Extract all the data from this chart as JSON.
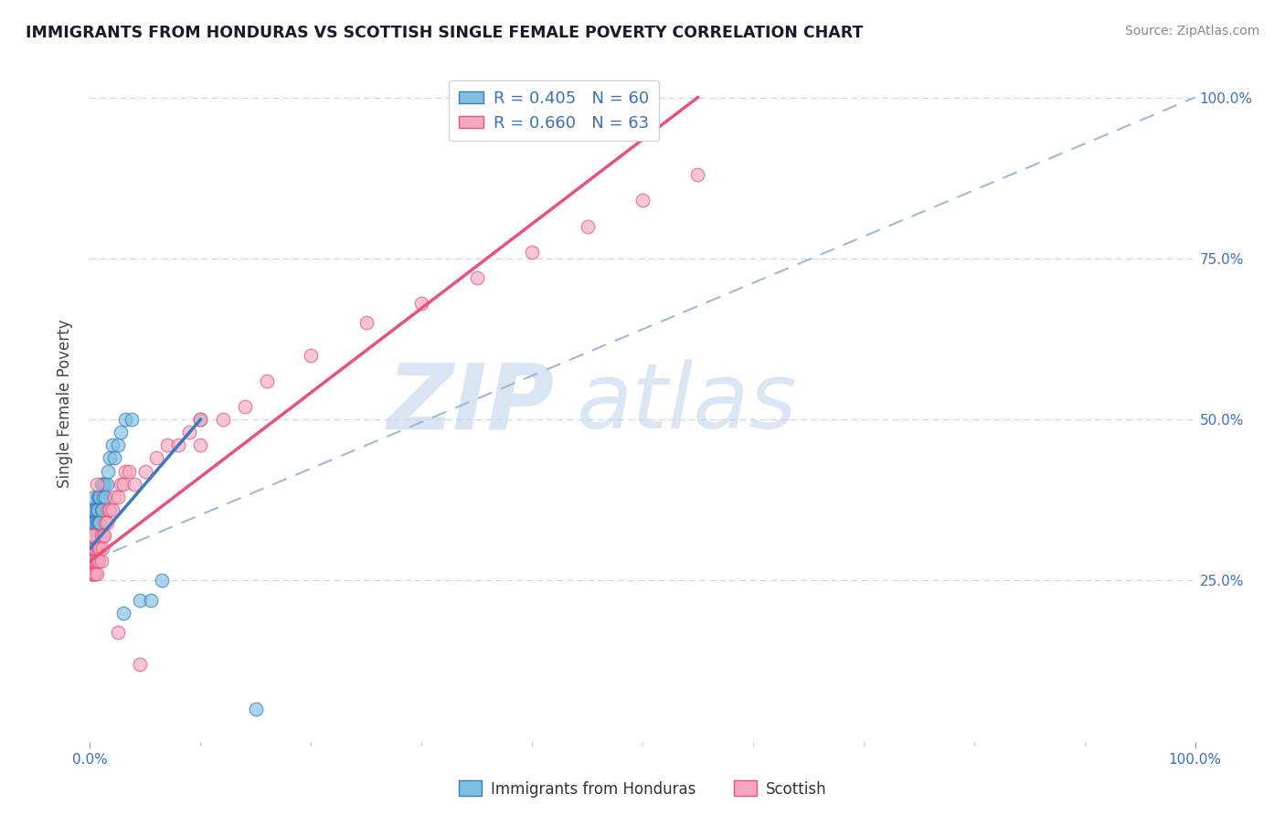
{
  "title": "IMMIGRANTS FROM HONDURAS VS SCOTTISH SINGLE FEMALE POVERTY CORRELATION CHART",
  "source": "Source: ZipAtlas.com",
  "ylabel": "Single Female Poverty",
  "legend_entry1_label": "R = 0.405   N = 60",
  "legend_entry2_label": "R = 0.660   N = 63",
  "legend_label1": "Immigrants from Honduras",
  "legend_label2": "Scottish",
  "color_blue": "#7fbfdf",
  "color_pink": "#f4a8bf",
  "color_blue_line": "#3a7bbf",
  "color_pink_line": "#e8527a",
  "color_dashed": "#a0b8d8",
  "blue_x": [
    0.001,
    0.001,
    0.001,
    0.002,
    0.002,
    0.002,
    0.002,
    0.002,
    0.003,
    0.003,
    0.003,
    0.003,
    0.003,
    0.003,
    0.004,
    0.004,
    0.004,
    0.004,
    0.004,
    0.004,
    0.005,
    0.005,
    0.005,
    0.005,
    0.005,
    0.006,
    0.006,
    0.006,
    0.006,
    0.007,
    0.007,
    0.007,
    0.007,
    0.008,
    0.008,
    0.008,
    0.009,
    0.009,
    0.01,
    0.01,
    0.011,
    0.011,
    0.012,
    0.013,
    0.014,
    0.015,
    0.016,
    0.018,
    0.02,
    0.022,
    0.025,
    0.028,
    0.032,
    0.038,
    0.045,
    0.055,
    0.065,
    0.1,
    0.15,
    0.03
  ],
  "blue_y": [
    0.28,
    0.3,
    0.32,
    0.28,
    0.3,
    0.32,
    0.34,
    0.36,
    0.26,
    0.28,
    0.3,
    0.32,
    0.34,
    0.36,
    0.28,
    0.3,
    0.32,
    0.34,
    0.36,
    0.38,
    0.28,
    0.3,
    0.32,
    0.34,
    0.36,
    0.3,
    0.32,
    0.34,
    0.36,
    0.32,
    0.34,
    0.36,
    0.38,
    0.32,
    0.34,
    0.38,
    0.34,
    0.38,
    0.36,
    0.4,
    0.36,
    0.4,
    0.38,
    0.4,
    0.38,
    0.4,
    0.42,
    0.44,
    0.46,
    0.44,
    0.46,
    0.48,
    0.5,
    0.5,
    0.22,
    0.22,
    0.25,
    0.5,
    0.05,
    0.2
  ],
  "pink_x": [
    0.001,
    0.001,
    0.001,
    0.001,
    0.002,
    0.002,
    0.002,
    0.002,
    0.003,
    0.003,
    0.003,
    0.003,
    0.004,
    0.004,
    0.004,
    0.005,
    0.005,
    0.005,
    0.006,
    0.006,
    0.006,
    0.007,
    0.007,
    0.008,
    0.008,
    0.009,
    0.01,
    0.01,
    0.011,
    0.012,
    0.013,
    0.014,
    0.015,
    0.016,
    0.018,
    0.02,
    0.022,
    0.025,
    0.028,
    0.03,
    0.032,
    0.035,
    0.04,
    0.05,
    0.06,
    0.07,
    0.08,
    0.09,
    0.1,
    0.1,
    0.12,
    0.14,
    0.16,
    0.2,
    0.25,
    0.3,
    0.35,
    0.4,
    0.45,
    0.5,
    0.55,
    0.025,
    0.045
  ],
  "pink_y": [
    0.26,
    0.28,
    0.3,
    0.32,
    0.26,
    0.28,
    0.3,
    0.32,
    0.26,
    0.28,
    0.3,
    0.32,
    0.26,
    0.28,
    0.3,
    0.26,
    0.28,
    0.3,
    0.26,
    0.28,
    0.4,
    0.28,
    0.3,
    0.28,
    0.3,
    0.3,
    0.28,
    0.32,
    0.3,
    0.32,
    0.32,
    0.34,
    0.34,
    0.36,
    0.36,
    0.36,
    0.38,
    0.38,
    0.4,
    0.4,
    0.42,
    0.42,
    0.4,
    0.42,
    0.44,
    0.46,
    0.46,
    0.48,
    0.46,
    0.5,
    0.5,
    0.52,
    0.56,
    0.6,
    0.65,
    0.68,
    0.72,
    0.76,
    0.8,
    0.84,
    0.88,
    0.17,
    0.12
  ],
  "blue_line": [
    [
      0.0,
      0.3
    ],
    [
      0.1,
      0.5
    ]
  ],
  "pink_line": [
    [
      0.0,
      0.28
    ],
    [
      0.55,
      1.0
    ]
  ],
  "dashed_line": [
    [
      0.0,
      0.28
    ],
    [
      1.0,
      1.0
    ]
  ],
  "xlim": [
    0.0,
    1.0
  ],
  "ylim": [
    0.0,
    1.05
  ],
  "yticks": [
    0.25,
    0.5,
    0.75,
    1.0
  ],
  "ytick_labels": [
    "25.0%",
    "50.0%",
    "75.0%",
    "100.0%"
  ]
}
